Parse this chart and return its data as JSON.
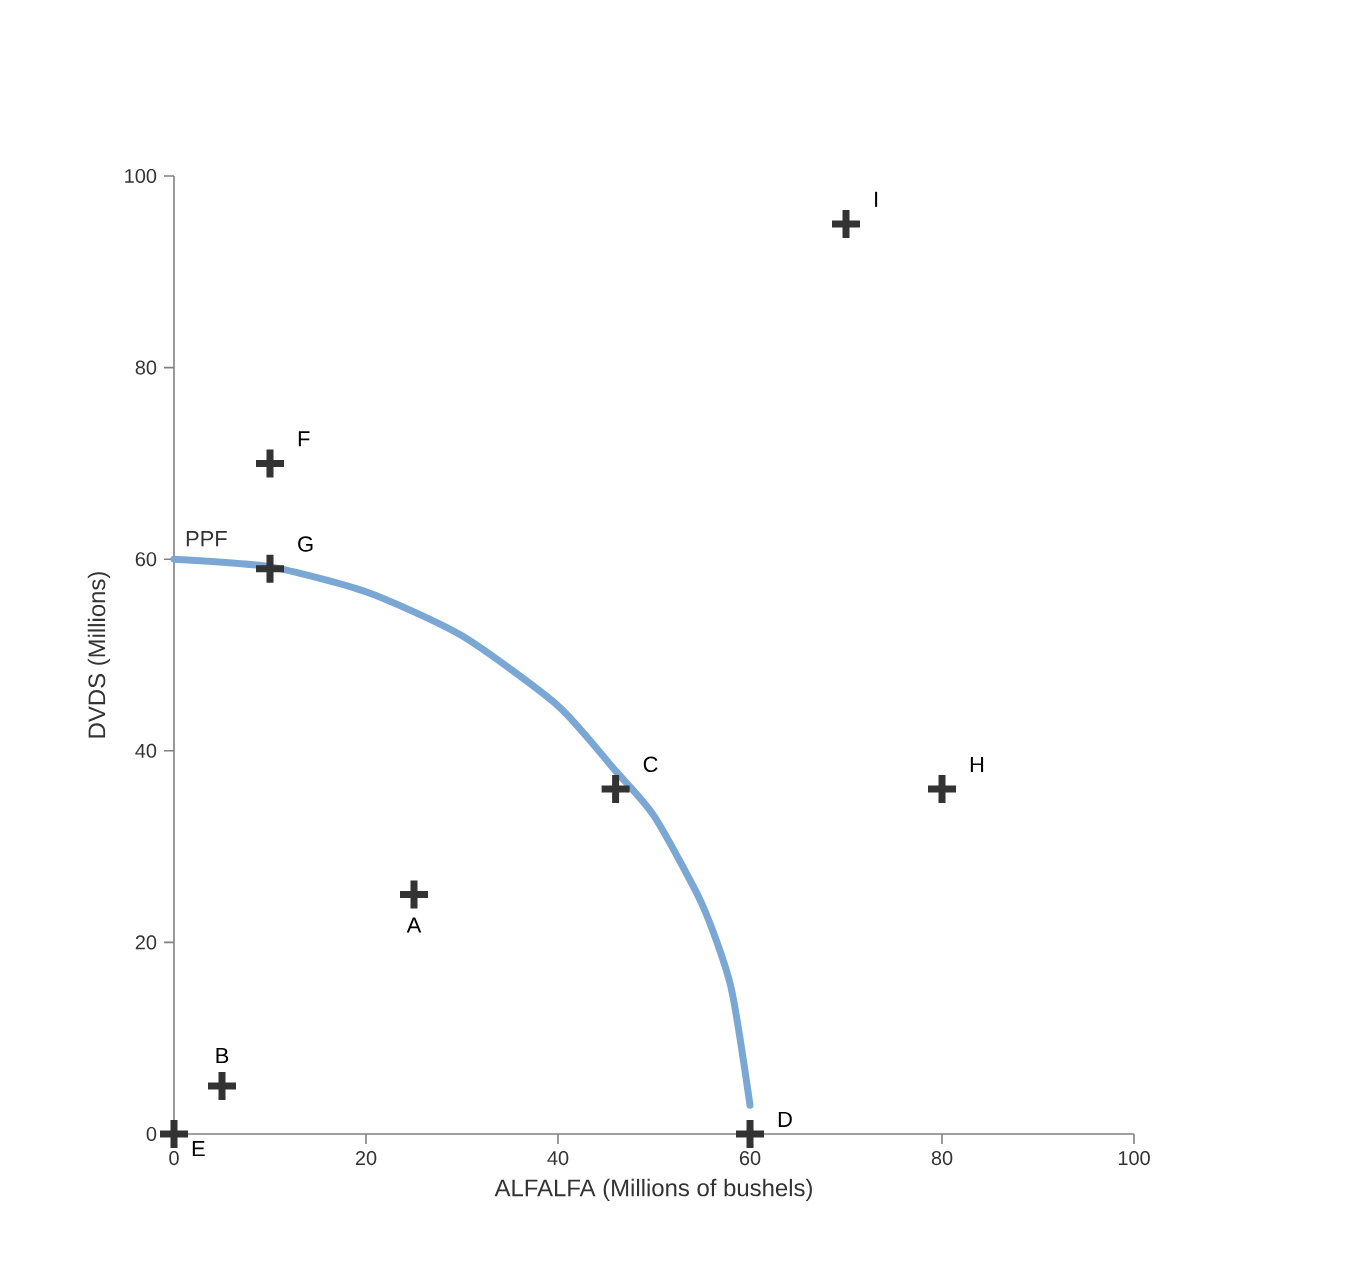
{
  "chart_data": {
    "type": "scatter",
    "xlabel": "ALFALFA (Millions of bushels)",
    "ylabel": "DVDS (Millions)",
    "xlim": [
      0,
      100
    ],
    "ylim": [
      0,
      100
    ],
    "xticks": [
      0,
      20,
      40,
      60,
      80,
      100
    ],
    "yticks": [
      0,
      20,
      40,
      60,
      80,
      100
    ],
    "grid": false,
    "marker": "cross",
    "series": [
      {
        "name": "PPF",
        "type": "line",
        "marker": "none",
        "color": "#7ba7d4",
        "x": [
          0,
          10,
          20,
          30,
          40,
          46,
          50,
          55,
          58,
          60
        ],
        "values": [
          60,
          59.2,
          56.6,
          52,
          44.7,
          37.9,
          33.2,
          24,
          15.4,
          3
        ]
      },
      {
        "color": "#333333",
        "x": [
          25,
          5,
          46,
          60,
          0,
          10,
          10,
          80,
          70
        ],
        "values": [
          25,
          5,
          36,
          0,
          0,
          70,
          59,
          36,
          95
        ]
      }
    ],
    "annotations": [
      {
        "text": "A",
        "x": 25,
        "y": 25
      },
      {
        "text": "B",
        "x": 5,
        "y": 5
      },
      {
        "text": "C",
        "x": 46,
        "y": 36
      },
      {
        "text": "D",
        "x": 60,
        "y": 0
      },
      {
        "text": "E",
        "x": 0,
        "y": 0
      },
      {
        "text": "F",
        "x": 10,
        "y": 70
      },
      {
        "text": "G",
        "x": 10,
        "y": 59
      },
      {
        "text": "H",
        "x": 80,
        "y": 36
      },
      {
        "text": "I",
        "x": 70,
        "y": 95
      }
    ]
  }
}
